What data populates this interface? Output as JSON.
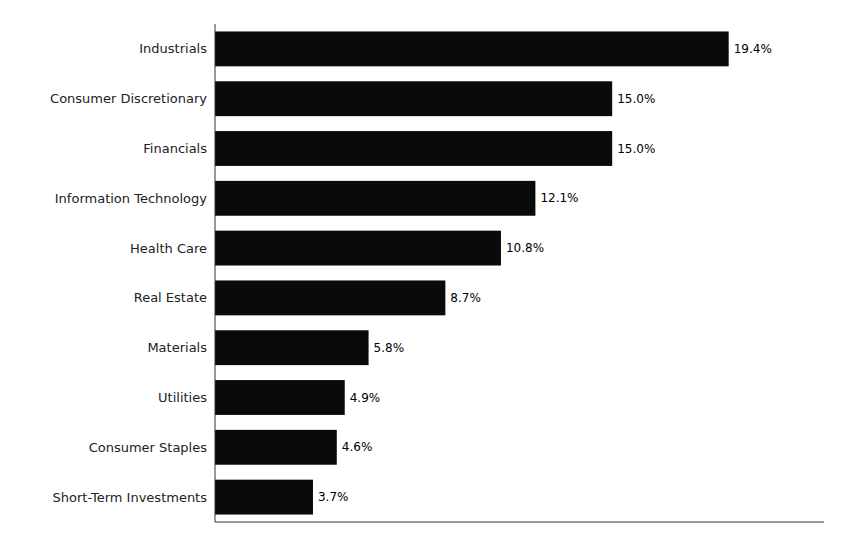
{
  "chart_data": {
    "type": "bar",
    "orientation": "horizontal",
    "categories": [
      "Short-Term Investments",
      "Consumer Staples",
      "Utilities",
      "Materials",
      "Real Estate",
      "Health Care",
      "Information Technology",
      "Financials",
      "Consumer Discretionary",
      "Industrials"
    ],
    "values": [
      3.7,
      4.6,
      4.9,
      5.8,
      8.7,
      10.8,
      12.1,
      15.0,
      15.0,
      19.4
    ],
    "value_labels": [
      "3.7%",
      "4.6%",
      "4.9%",
      "5.8%",
      "8.7%",
      "10.8%",
      "12.1%",
      "15.0%",
      "15.0%",
      "19.4%"
    ],
    "color": "#0a0a0a",
    "xlim": [
      0,
      23
    ],
    "data_labels": true,
    "tick_labels": "y",
    "grid": false
  }
}
